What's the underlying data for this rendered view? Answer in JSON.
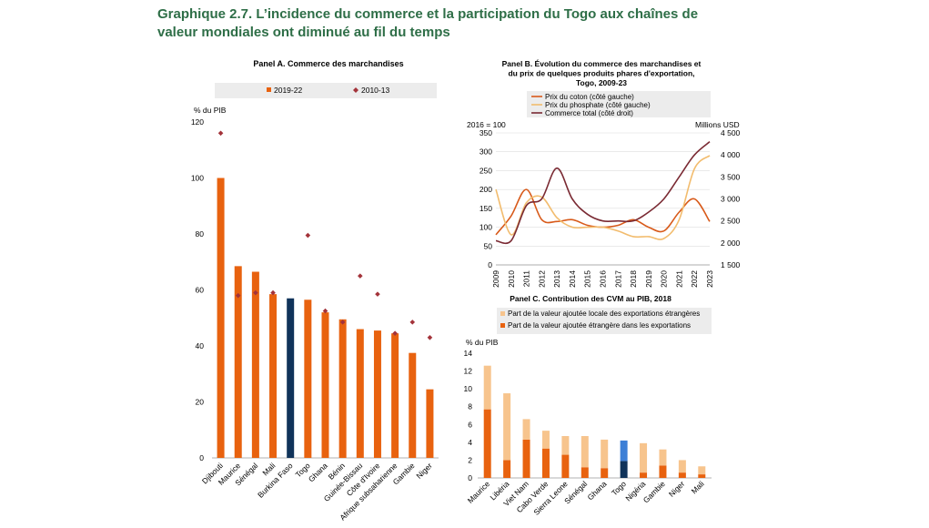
{
  "title": "Graphique 2.7. L’incidence du commerce et la participation du Togo aux chaînes de valeur mondiales ont diminué au fil du temps",
  "colors": {
    "orange": "#e8620f",
    "navy": "#10335a",
    "diamond": "#a3333a",
    "light": "#f7c48d",
    "blue": "#3d7fd6",
    "coton": "#d85a1a",
    "phosphate": "#f2bc6e",
    "total": "#7a2a33",
    "title": "#2e6e47"
  },
  "chart_data": [
    {
      "type": "bar",
      "panel": "A",
      "title": "Panel A. Commerce des marchandises",
      "ylabel": "% du PIB",
      "ylim": [
        0,
        120
      ],
      "yticks": [
        0,
        20,
        40,
        60,
        80,
        100,
        120
      ],
      "legend": [
        "2019-22",
        "2010-13"
      ],
      "highlight": "Burkina Faso",
      "categories": [
        "Djibouti",
        "Maurice",
        "Sénégal",
        "Mali",
        "Burkina Faso",
        "Togo",
        "Ghana",
        "Bénin",
        "Guinée-Bissau",
        "Côte d'Ivoire",
        "Afrique subsaharienne",
        "Gambie",
        "Niger"
      ],
      "series": [
        {
          "name": "2019-22",
          "values": [
            100,
            68.5,
            66.5,
            58.5,
            57,
            56.5,
            52,
            49.5,
            46,
            45.5,
            44.5,
            37.5,
            24.5
          ]
        },
        {
          "name": "2010-13",
          "values": [
            116,
            58,
            59,
            59,
            null,
            79.5,
            52.5,
            48.5,
            65,
            58.5,
            44.5,
            48.5,
            43
          ]
        }
      ]
    },
    {
      "type": "line",
      "panel": "B",
      "title": "Panel B. Évolution du commerce des marchandises et du prix de quelques produits phares d'exportation, Togo, 2009-23",
      "title_lines": [
        "Panel B. Évolution du commerce des marchandises et",
        "du prix de quelques produits phares d'exportation,",
        "Togo, 2009-23"
      ],
      "ylabel_left": "2016 = 100",
      "ylabel_right": "Millions USD",
      "ylim_left": [
        0,
        350
      ],
      "yticks_left": [
        0,
        50,
        100,
        150,
        200,
        250,
        300,
        350
      ],
      "ylim_right": [
        1500,
        4500
      ],
      "yticks_right": [
        "1 500",
        "2 000",
        "2 500",
        "3 000",
        "3 500",
        "4 000",
        "4 500"
      ],
      "x": [
        "2009",
        "2010",
        "2011",
        "2012",
        "2013",
        "2014",
        "2015",
        "2016",
        "2017",
        "2018",
        "2019",
        "2020",
        "2021",
        "2022",
        "2023"
      ],
      "series": [
        {
          "name": "Prix du coton (côté gauche)",
          "axis": "left",
          "values": [
            80,
            130,
            200,
            120,
            115,
            120,
            105,
            100,
            105,
            120,
            100,
            90,
            140,
            175,
            115
          ]
        },
        {
          "name": "Prix du phosphate (côté gauche)",
          "axis": "left",
          "values": [
            200,
            80,
            165,
            180,
            125,
            100,
            100,
            100,
            90,
            75,
            75,
            70,
            120,
            255,
            290
          ]
        },
        {
          "name": "Commerce total (côté droit)",
          "axis": "right",
          "values": [
            2050,
            2050,
            2850,
            3000,
            3700,
            3000,
            2650,
            2500,
            2500,
            2500,
            2700,
            3000,
            3500,
            4000,
            4300
          ]
        }
      ]
    },
    {
      "type": "stacked-bar",
      "panel": "C",
      "title": "Panel C. Contribution des CVM au PIB, 2018",
      "ylabel": "% du PIB",
      "ylim": [
        0,
        14
      ],
      "yticks": [
        0,
        2,
        4,
        6,
        8,
        10,
        12,
        14
      ],
      "highlight": "Togo",
      "categories": [
        "Maurice",
        "Libéria",
        "Viet Nam",
        "Cabo Verde",
        "Sierra Leone",
        "Sénégal",
        "Ghana",
        "Togo",
        "Nigéria",
        "Gambie",
        "Niger",
        "Mali"
      ],
      "series": [
        {
          "name": "Part de la valeur ajoutée étrangère dans les exportations",
          "values": [
            7.7,
            2,
            4.3,
            3.3,
            2.6,
            1.2,
            1.1,
            1.9,
            0.6,
            1.4,
            0.6,
            0.4
          ]
        },
        {
          "name": "Part de la valeur ajoutée locale des exportations étrangères",
          "values": [
            4.9,
            7.5,
            2.3,
            2,
            2.1,
            3.5,
            3.2,
            2.3,
            3.3,
            1.8,
            1.4,
            0.9
          ]
        }
      ],
      "legend_order": [
        "Part de la valeur ajoutée locale des exportations étrangères",
        "Part de la valeur ajoutée étrangère dans les exportations"
      ]
    }
  ]
}
